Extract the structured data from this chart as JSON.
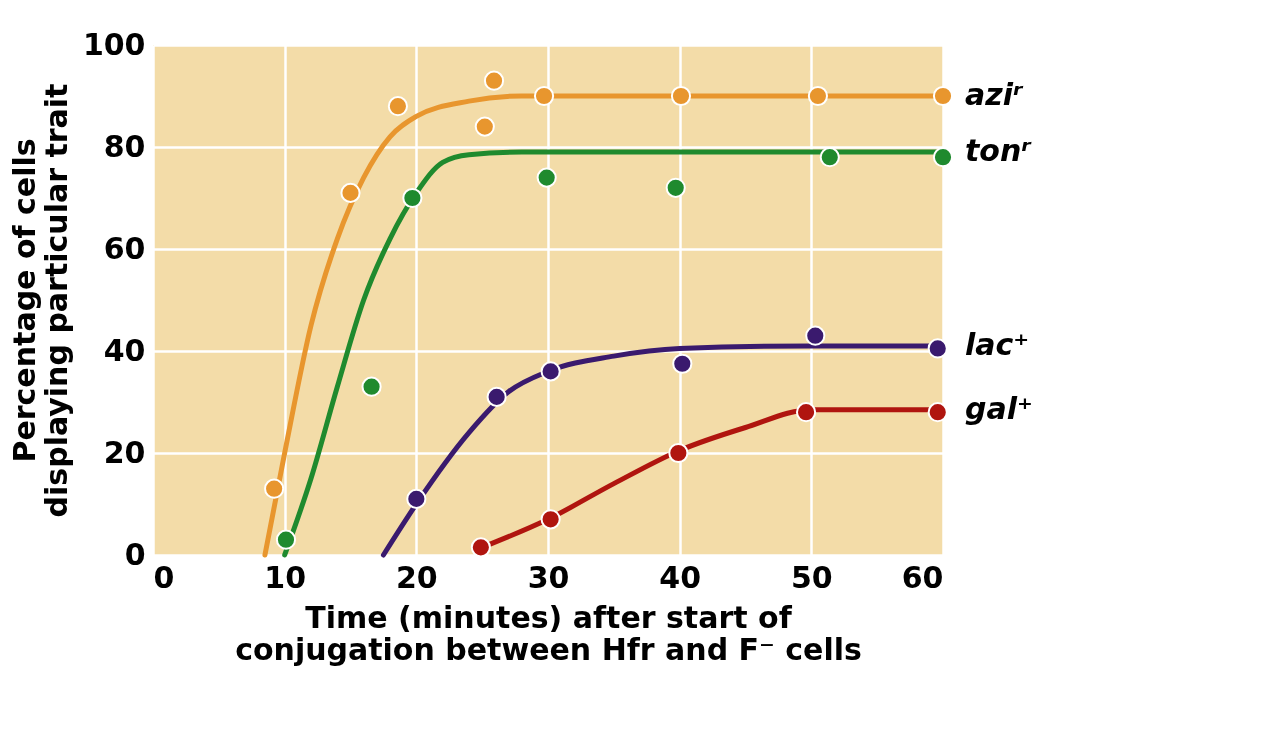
{
  "chart_data": {
    "type": "scatter",
    "xlabel": "Time (minutes) after start of\nconjugation between Hfr and F⁻ cells",
    "ylabel": "Percentage of cells\ndisplaying particular trait",
    "xlim": [
      0,
      60
    ],
    "xticks": [
      0,
      10,
      20,
      30,
      40,
      50,
      60
    ],
    "ylim": [
      0,
      100
    ],
    "yticks": [
      0,
      20,
      40,
      60,
      80,
      100
    ],
    "grid": true,
    "marker": "circle",
    "series": [
      {
        "type": "line",
        "name": "aziʳ",
        "color": "#e8962e",
        "marker": "none",
        "line_style": "solid",
        "x": [
          8.5,
          10,
          12,
          14,
          16,
          18,
          20,
          24,
          28,
          30,
          40,
          50,
          60
        ],
        "values": [
          0,
          20,
          45,
          62,
          74,
          82,
          86,
          89,
          90,
          90,
          90,
          90,
          90
        ]
      },
      {
        "type": "line",
        "name": "tonʳ",
        "color": "#1f8a2e",
        "marker": "none",
        "line_style": "solid",
        "x": [
          10,
          12,
          14,
          16,
          18,
          20,
          22,
          24,
          28,
          40,
          50,
          60
        ],
        "values": [
          0,
          15,
          33,
          50,
          62,
          71,
          77,
          78.5,
          79,
          79,
          79,
          79
        ]
      },
      {
        "type": "line",
        "name": "lac⁺",
        "color": "#3a1a6e",
        "marker": "none",
        "line_style": "solid",
        "x": [
          17.5,
          20,
          24,
          27,
          30,
          35,
          40,
          50,
          60
        ],
        "values": [
          0,
          10,
          24,
          32,
          36,
          39,
          40.5,
          41,
          41
        ]
      },
      {
        "type": "line",
        "name": "gal⁺",
        "color": "#b0150f",
        "marker": "none",
        "line_style": "solid",
        "x": [
          25,
          30,
          35,
          40,
          45,
          50,
          60
        ],
        "values": [
          1.5,
          7,
          14,
          20.5,
          25,
          28.5,
          28.5
        ]
      },
      {
        "color": "#e8962e",
        "x": [
          9.2,
          15,
          18.6,
          25.2,
          25.9,
          29.7,
          40.1,
          50.5,
          60
        ],
        "values": [
          13,
          71,
          88,
          84,
          93,
          90,
          90,
          90,
          90
        ]
      },
      {
        "color": "#1f8a2e",
        "x": [
          10.1,
          16.6,
          19.7,
          29.9,
          39.7,
          51.4,
          60
        ],
        "values": [
          3,
          33,
          70,
          74,
          72,
          78,
          78
        ]
      },
      {
        "color": "#3a1a6e",
        "x": [
          20,
          26.1,
          30.2,
          40.2,
          50.3,
          59.6
        ],
        "values": [
          11,
          31,
          36,
          37.5,
          43,
          40.5
        ]
      },
      {
        "color": "#b0150f",
        "x": [
          24.9,
          30.2,
          39.9,
          49.6,
          59.6
        ],
        "values": [
          1.5,
          7,
          20,
          28,
          28
        ]
      }
    ]
  }
}
